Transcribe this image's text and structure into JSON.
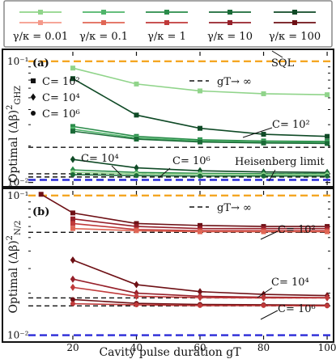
{
  "colors": {
    "green": [
      "#90d48a",
      "#4fb56a",
      "#2a8c4a",
      "#1a6a37",
      "#0f4a26"
    ],
    "red": [
      "#f4998a",
      "#e06655",
      "#c03a3a",
      "#96202a",
      "#6e1015"
    ],
    "sql": "#f5a623",
    "heisenberg": "#2a2ad8",
    "asymptote": "#111111"
  },
  "legend": {
    "labels": [
      "γ/κ = 0.01",
      "γ/κ = 0.1",
      "γ/κ = 1",
      "γ/κ = 10",
      "γ/κ = 100"
    ]
  },
  "chart_data": [
    {
      "type": "line",
      "panel_label": "(a)",
      "ylabel": "Optimal (Δβ)²_GHZ",
      "ylabel_main": "Optimal (Δβ)",
      "ylabel_sub": "GHZ",
      "ylabel_sup": "2",
      "yscale": "log",
      "ylim": [
        0.0095,
        0.12
      ],
      "xlim": [
        6,
        101
      ],
      "yticks": [
        {
          "v": 0.1,
          "label": "10⁻¹"
        },
        {
          "v": 0.01,
          "label": "10⁻²"
        }
      ],
      "reference_lines": [
        {
          "name": "SQL",
          "y": 0.1,
          "style": "orange-dashed"
        },
        {
          "name": "Heisenberg limit",
          "y": 0.0105,
          "style": "blue-dashed"
        }
      ],
      "asymptote_note": "gT→ ∞",
      "asymptotes": [
        {
          "C": "10²",
          "y": 0.0195
        },
        {
          "C": "10⁴",
          "y": 0.0118
        },
        {
          "C": "10⁶",
          "y": 0.0111
        }
      ],
      "marker_key": [
        {
          "marker": "square",
          "label": "C= 10²"
        },
        {
          "marker": "diamond",
          "label": "C= 10⁴"
        },
        {
          "marker": "circle",
          "label": "C= 10⁶"
        }
      ],
      "annotations": [
        "C= 10²",
        "C= 10⁴",
        "C= 10⁶",
        "SQL",
        "Heisenberg limit"
      ],
      "x": [
        20,
        40,
        60,
        80,
        100
      ],
      "series": [
        {
          "name": "γ/κ = 0.01",
          "C": "10²",
          "marker": "square",
          "values": [
            0.088,
            0.065,
            0.057,
            0.054,
            0.053
          ]
        },
        {
          "name": "γ/κ = 100",
          "C": "10²",
          "marker": "square",
          "values": [
            0.072,
            0.036,
            0.028,
            0.025,
            0.024
          ]
        },
        {
          "name": "γ/κ = 1",
          "C": "10²",
          "marker": "square",
          "values": [
            0.029,
            0.024,
            0.0225,
            0.022,
            0.0218
          ]
        },
        {
          "name": "γ/κ = 0.1",
          "C": "10²",
          "marker": "square",
          "values": [
            0.0275,
            0.0233,
            0.022,
            0.0215,
            0.0213
          ]
        },
        {
          "name": "γ/κ = 10",
          "C": "10²",
          "marker": "square",
          "values": [
            0.0265,
            0.0228,
            0.0216,
            0.0212,
            0.021
          ]
        },
        {
          "name": "γ/κ = 100",
          "C": "10⁴",
          "marker": "diamond",
          "values": [
            0.0155,
            0.0132,
            0.0125,
            0.0122,
            0.0121
          ]
        },
        {
          "name": "γ/κ = 1",
          "C": "10⁴",
          "marker": "diamond",
          "values": [
            0.0127,
            0.0121,
            0.0119,
            0.0118,
            0.0118
          ]
        },
        {
          "name": "γ/κ = 0.01",
          "C": "10⁶",
          "marker": "circle",
          "values": [
            0.0121,
            0.0118,
            0.0117,
            0.0116,
            0.0116
          ]
        },
        {
          "name": "γ/κ = 10",
          "C": "10⁶",
          "marker": "circle",
          "values": [
            0.0116,
            0.0114,
            0.0113,
            0.0113,
            0.0113
          ]
        }
      ]
    },
    {
      "type": "line",
      "panel_label": "(b)",
      "ylabel": "Optimal (Δβ)²_N/2",
      "ylabel_main": "Optimal (Δβ)",
      "ylabel_sub": "N/2",
      "ylabel_sup": "2",
      "yscale": "log",
      "xlabel": "Cavity pulse duration gT",
      "xticks": [
        20,
        40,
        60,
        80,
        100
      ],
      "yscale_note": "log",
      "ylim": [
        0.0093,
        0.108
      ],
      "xlim": [
        6,
        101
      ],
      "yticks": [
        {
          "v": 0.1,
          "label": "10⁻¹"
        },
        {
          "v": 0.01,
          "label": "10⁻²"
        }
      ],
      "reference_lines": [
        {
          "name": "SQL",
          "y": 0.1,
          "style": "orange-dashed"
        },
        {
          "name": "Heisenberg limit",
          "y": 0.01,
          "style": "blue-dashed"
        }
      ],
      "asymptote_note": "gT→ ∞",
      "asymptotes": [
        {
          "C": "10²",
          "y": 0.0545
        },
        {
          "C": "10⁴",
          "y": 0.0185
        },
        {
          "C": "10⁶",
          "y": 0.0162
        }
      ],
      "annotations": [
        "C= 10²",
        "C= 10⁴",
        "C= 10⁶"
      ],
      "x": [
        10,
        20,
        40,
        60,
        80,
        100
      ],
      "series": [
        {
          "name": "γ/κ = 100",
          "C": "10²",
          "marker": "square",
          "values": [
            0.102,
            0.075,
            0.063,
            0.061,
            0.06,
            0.06
          ]
        },
        {
          "name": "γ/κ = 10",
          "C": "10²",
          "marker": "square",
          "values": [
            null,
            0.068,
            0.06,
            0.058,
            0.058,
            0.058
          ]
        },
        {
          "name": "γ/κ = 1",
          "C": "10²",
          "marker": "square",
          "values": [
            null,
            0.063,
            0.057,
            0.056,
            0.056,
            0.056
          ]
        },
        {
          "name": "γ/κ = 0.1",
          "C": "10²",
          "marker": "square",
          "values": [
            null,
            0.058,
            0.056,
            0.055,
            0.055,
            0.055
          ]
        },
        {
          "name": "γ/κ = 100",
          "C": "10⁴",
          "marker": "diamond",
          "values": [
            null,
            0.0345,
            0.023,
            0.0205,
            0.0196,
            0.0192
          ]
        },
        {
          "name": "γ/κ = 10",
          "C": "10⁴",
          "marker": "diamond",
          "values": [
            null,
            0.0252,
            0.02,
            0.019,
            0.0187,
            0.0186
          ]
        },
        {
          "name": "γ/κ = 1",
          "C": "10⁴",
          "marker": "diamond",
          "values": [
            null,
            0.022,
            0.019,
            0.0186,
            0.0185,
            0.0185
          ]
        },
        {
          "name": "γ/κ = 100",
          "C": "10⁶",
          "marker": "circle",
          "values": [
            null,
            0.018,
            0.0169,
            0.0166,
            0.0165,
            0.0164
          ]
        },
        {
          "name": "γ/κ = 1",
          "C": "10⁶",
          "marker": "circle",
          "values": [
            null,
            0.0168,
            0.0165,
            0.0163,
            0.0163,
            0.0162
          ]
        }
      ]
    }
  ]
}
